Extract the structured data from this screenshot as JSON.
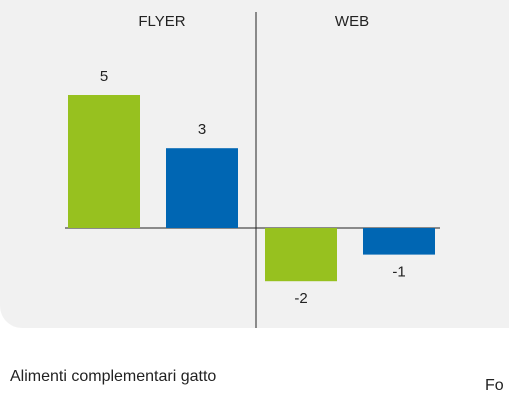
{
  "chart_data": {
    "type": "bar",
    "groups": [
      "FLYER",
      "WEB"
    ],
    "series": [
      {
        "color": "#97c11f",
        "values": [
          5,
          -2
        ]
      },
      {
        "color": "#0066b3",
        "values": [
          3,
          -1
        ]
      }
    ],
    "data_labels": [
      [
        "5",
        "3"
      ],
      [
        "-2",
        "-1"
      ]
    ],
    "ylim": [
      -3,
      6
    ],
    "grid": false,
    "legend": "none"
  },
  "caption": {
    "left": "Alimenti complementari gatto",
    "right": "Fo"
  }
}
